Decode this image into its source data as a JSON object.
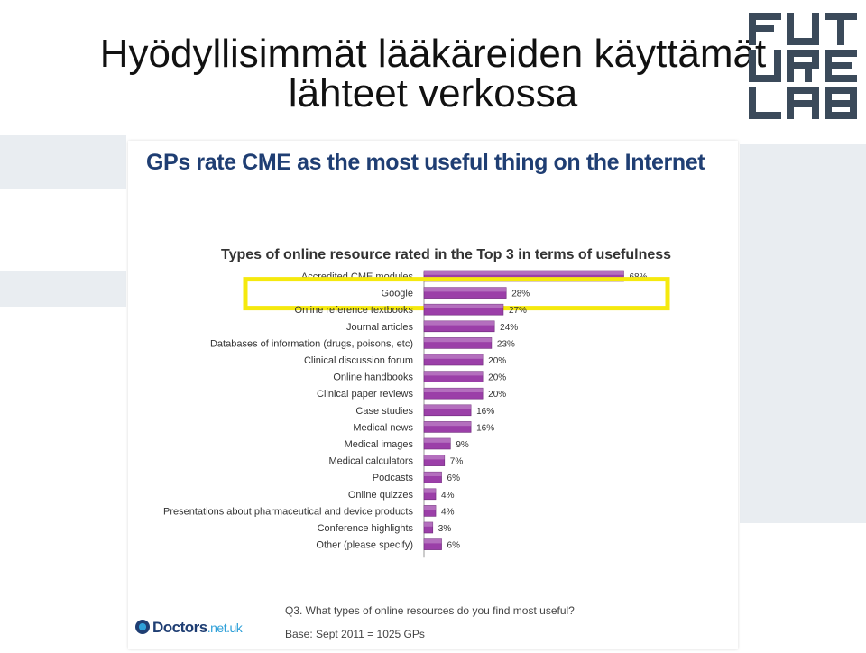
{
  "slide": {
    "title_line1": "Hyödyllisimmät lääkäreiden käyttämät",
    "title_line2": "lähteet verkossa",
    "logo_rows": [
      "FUT",
      "URE",
      "LAB"
    ]
  },
  "chart_panel": {
    "headline": "GPs rate CME as the most useful thing on the Internet",
    "question": "Q3. What types of online resources do you find most useful?",
    "base": "Base: Sept 2011 = 1025 GPs",
    "source_logo_name": "Doctors",
    "source_logo_tld": ".net.uk"
  },
  "chart_data": {
    "type": "bar",
    "orientation": "horizontal",
    "title": "Types of online resource rated in the Top 3 in terms of usefulness",
    "categories": [
      "Accredited CME modules",
      "Google",
      "Online reference textbooks",
      "Journal articles",
      "Databases of information (drugs, poisons, etc)",
      "Clinical discussion forum",
      "Online handbooks",
      "Clinical paper reviews",
      "Case studies",
      "Medical news",
      "Medical images",
      "Medical calculators",
      "Podcasts",
      "Online quizzes",
      "Presentations about pharmaceutical and device products",
      "Conference highlights",
      "Other (please specify)"
    ],
    "values": [
      68,
      28,
      27,
      24,
      23,
      20,
      20,
      20,
      16,
      16,
      9,
      7,
      6,
      4,
      4,
      3,
      6
    ],
    "value_labels": [
      "68%",
      "28%",
      "27%",
      "24%",
      "23%",
      "20%",
      "20%",
      "20%",
      "16%",
      "16%",
      "9%",
      "7%",
      "6%",
      "4%",
      "4%",
      "3%",
      "6%"
    ],
    "xlim": [
      0,
      70
    ],
    "highlighted_category": "Google",
    "bar_color": "#9b3fa8",
    "highlight_color": "#f5e90e"
  }
}
